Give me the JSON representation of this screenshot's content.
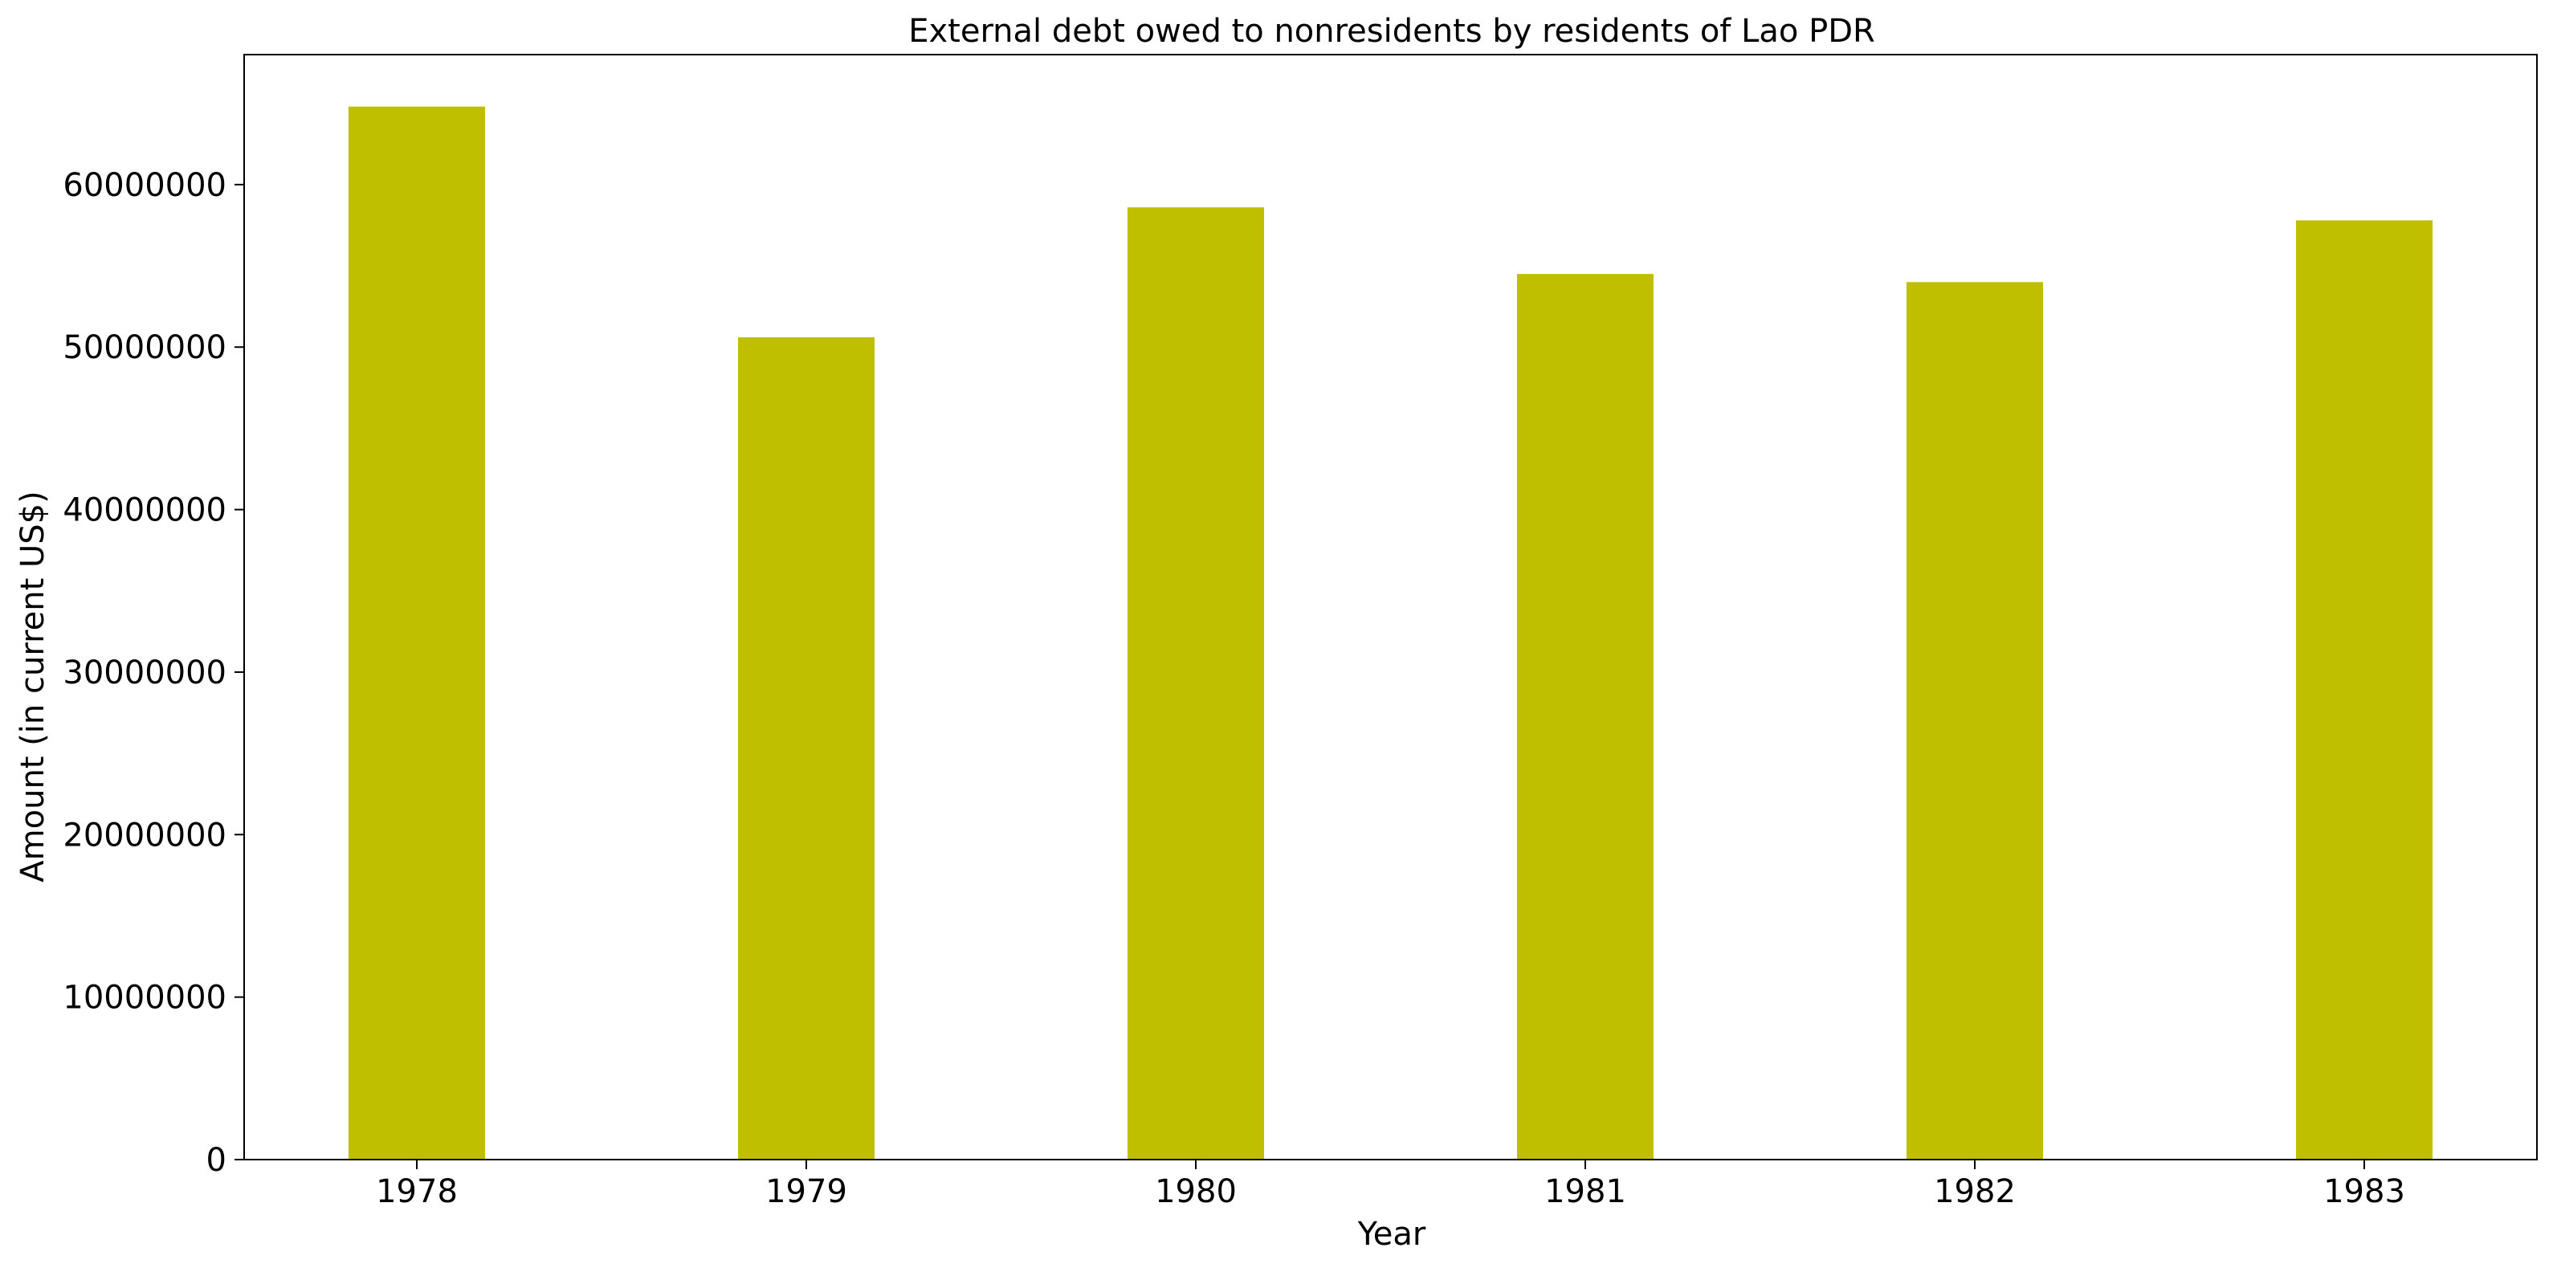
{
  "chart_data": {
    "type": "bar",
    "title": "External debt owed to nonresidents by residents of Lao PDR",
    "xlabel": "Year",
    "ylabel": "Amount (in current US$)",
    "categories": [
      "1978",
      "1979",
      "1980",
      "1981",
      "1982",
      "1983"
    ],
    "values": [
      64800000,
      50600000,
      58600000,
      54500000,
      54000000,
      57800000
    ],
    "ylim": [
      0,
      68000000
    ],
    "yticks": [
      0,
      10000000,
      20000000,
      30000000,
      40000000,
      50000000,
      60000000
    ],
    "ytick_labels": [
      "0",
      "10000000",
      "20000000",
      "30000000",
      "40000000",
      "50000000",
      "60000000"
    ],
    "bar_color": "#bfbf00",
    "grid": false,
    "legend": "none"
  }
}
